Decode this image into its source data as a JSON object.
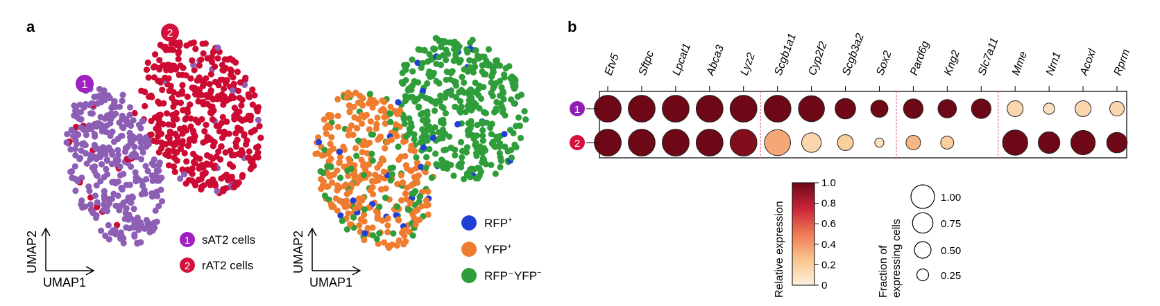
{
  "panels": {
    "a": "a",
    "b": "b"
  },
  "chart_data": [
    {
      "type": "scatter",
      "panel": "a",
      "xlabel": "UMAP1",
      "ylabel": "UMAP2",
      "markers": {
        "1": "1",
        "2": "2"
      },
      "series": [
        {
          "name": "sAT2 cells",
          "marker_label": "1",
          "color": "#8c5fb4"
        },
        {
          "name": "rAT2 cells",
          "marker_label": "2",
          "color": "#cc0a32"
        }
      ],
      "seed": 11
    },
    {
      "type": "scatter",
      "panel": "a",
      "xlabel": "UMAP1",
      "ylabel": "UMAP2",
      "series": [
        {
          "name": "RFP",
          "sup": "+",
          "color": "#1f3fd6"
        },
        {
          "name": "YFP",
          "sup": "+",
          "color": "#f07c30"
        },
        {
          "name": "RFP⁻YFP",
          "sup": "−",
          "color": "#2f9e3a"
        }
      ],
      "seed": 23
    },
    {
      "type": "dot",
      "panel": "b",
      "genes": [
        "Etv5",
        "Sftpc",
        "Lpcat1",
        "Abca3",
        "Lyz2",
        "Scgb1a1",
        "Cyp2f2",
        "Scgb3a2",
        "Sox2",
        "Pard6g",
        "Kng2",
        "Slc7a11",
        "Mme",
        "Nrn1",
        "Acoxl",
        "Rprm"
      ],
      "groups": [
        "1",
        "2"
      ],
      "group_colors": [
        "#8f1fb0",
        "#d4103c"
      ],
      "relative_expression": [
        [
          1.0,
          1.0,
          1.0,
          1.0,
          1.0,
          1.0,
          1.0,
          1.0,
          1.0,
          1.0,
          1.0,
          1.0,
          0.15,
          0.1,
          0.15,
          0.15
        ],
        [
          1.0,
          1.0,
          1.0,
          1.0,
          0.95,
          0.35,
          0.15,
          0.2,
          0.1,
          0.3,
          0.2,
          null,
          1.0,
          1.0,
          1.0,
          1.0
        ]
      ],
      "fraction_expressing": [
        [
          0.85,
          0.85,
          0.85,
          0.85,
          0.85,
          0.85,
          0.8,
          0.5,
          0.35,
          0.45,
          0.4,
          0.45,
          0.3,
          0.15,
          0.3,
          0.25
        ],
        [
          0.85,
          0.85,
          0.85,
          0.85,
          0.85,
          0.8,
          0.45,
          0.3,
          0.1,
          0.25,
          0.2,
          0.0,
          0.75,
          0.55,
          0.7,
          0.5
        ]
      ],
      "separators_after": [
        "Lyz2",
        "Sox2",
        "Slc7a11"
      ],
      "colorbar": {
        "title": "Relative expression",
        "ticks": [
          "0",
          "0.2",
          "0.4",
          "0.6",
          "0.8",
          "1.0"
        ],
        "range": [
          0,
          1
        ]
      },
      "size_legend": {
        "title_line1": "Fraction of",
        "title_line2": "expressing cells",
        "labels": [
          "1.00",
          "0.75",
          "0.50",
          "0.25"
        ],
        "values": [
          1.0,
          0.75,
          0.5,
          0.25
        ]
      }
    }
  ]
}
